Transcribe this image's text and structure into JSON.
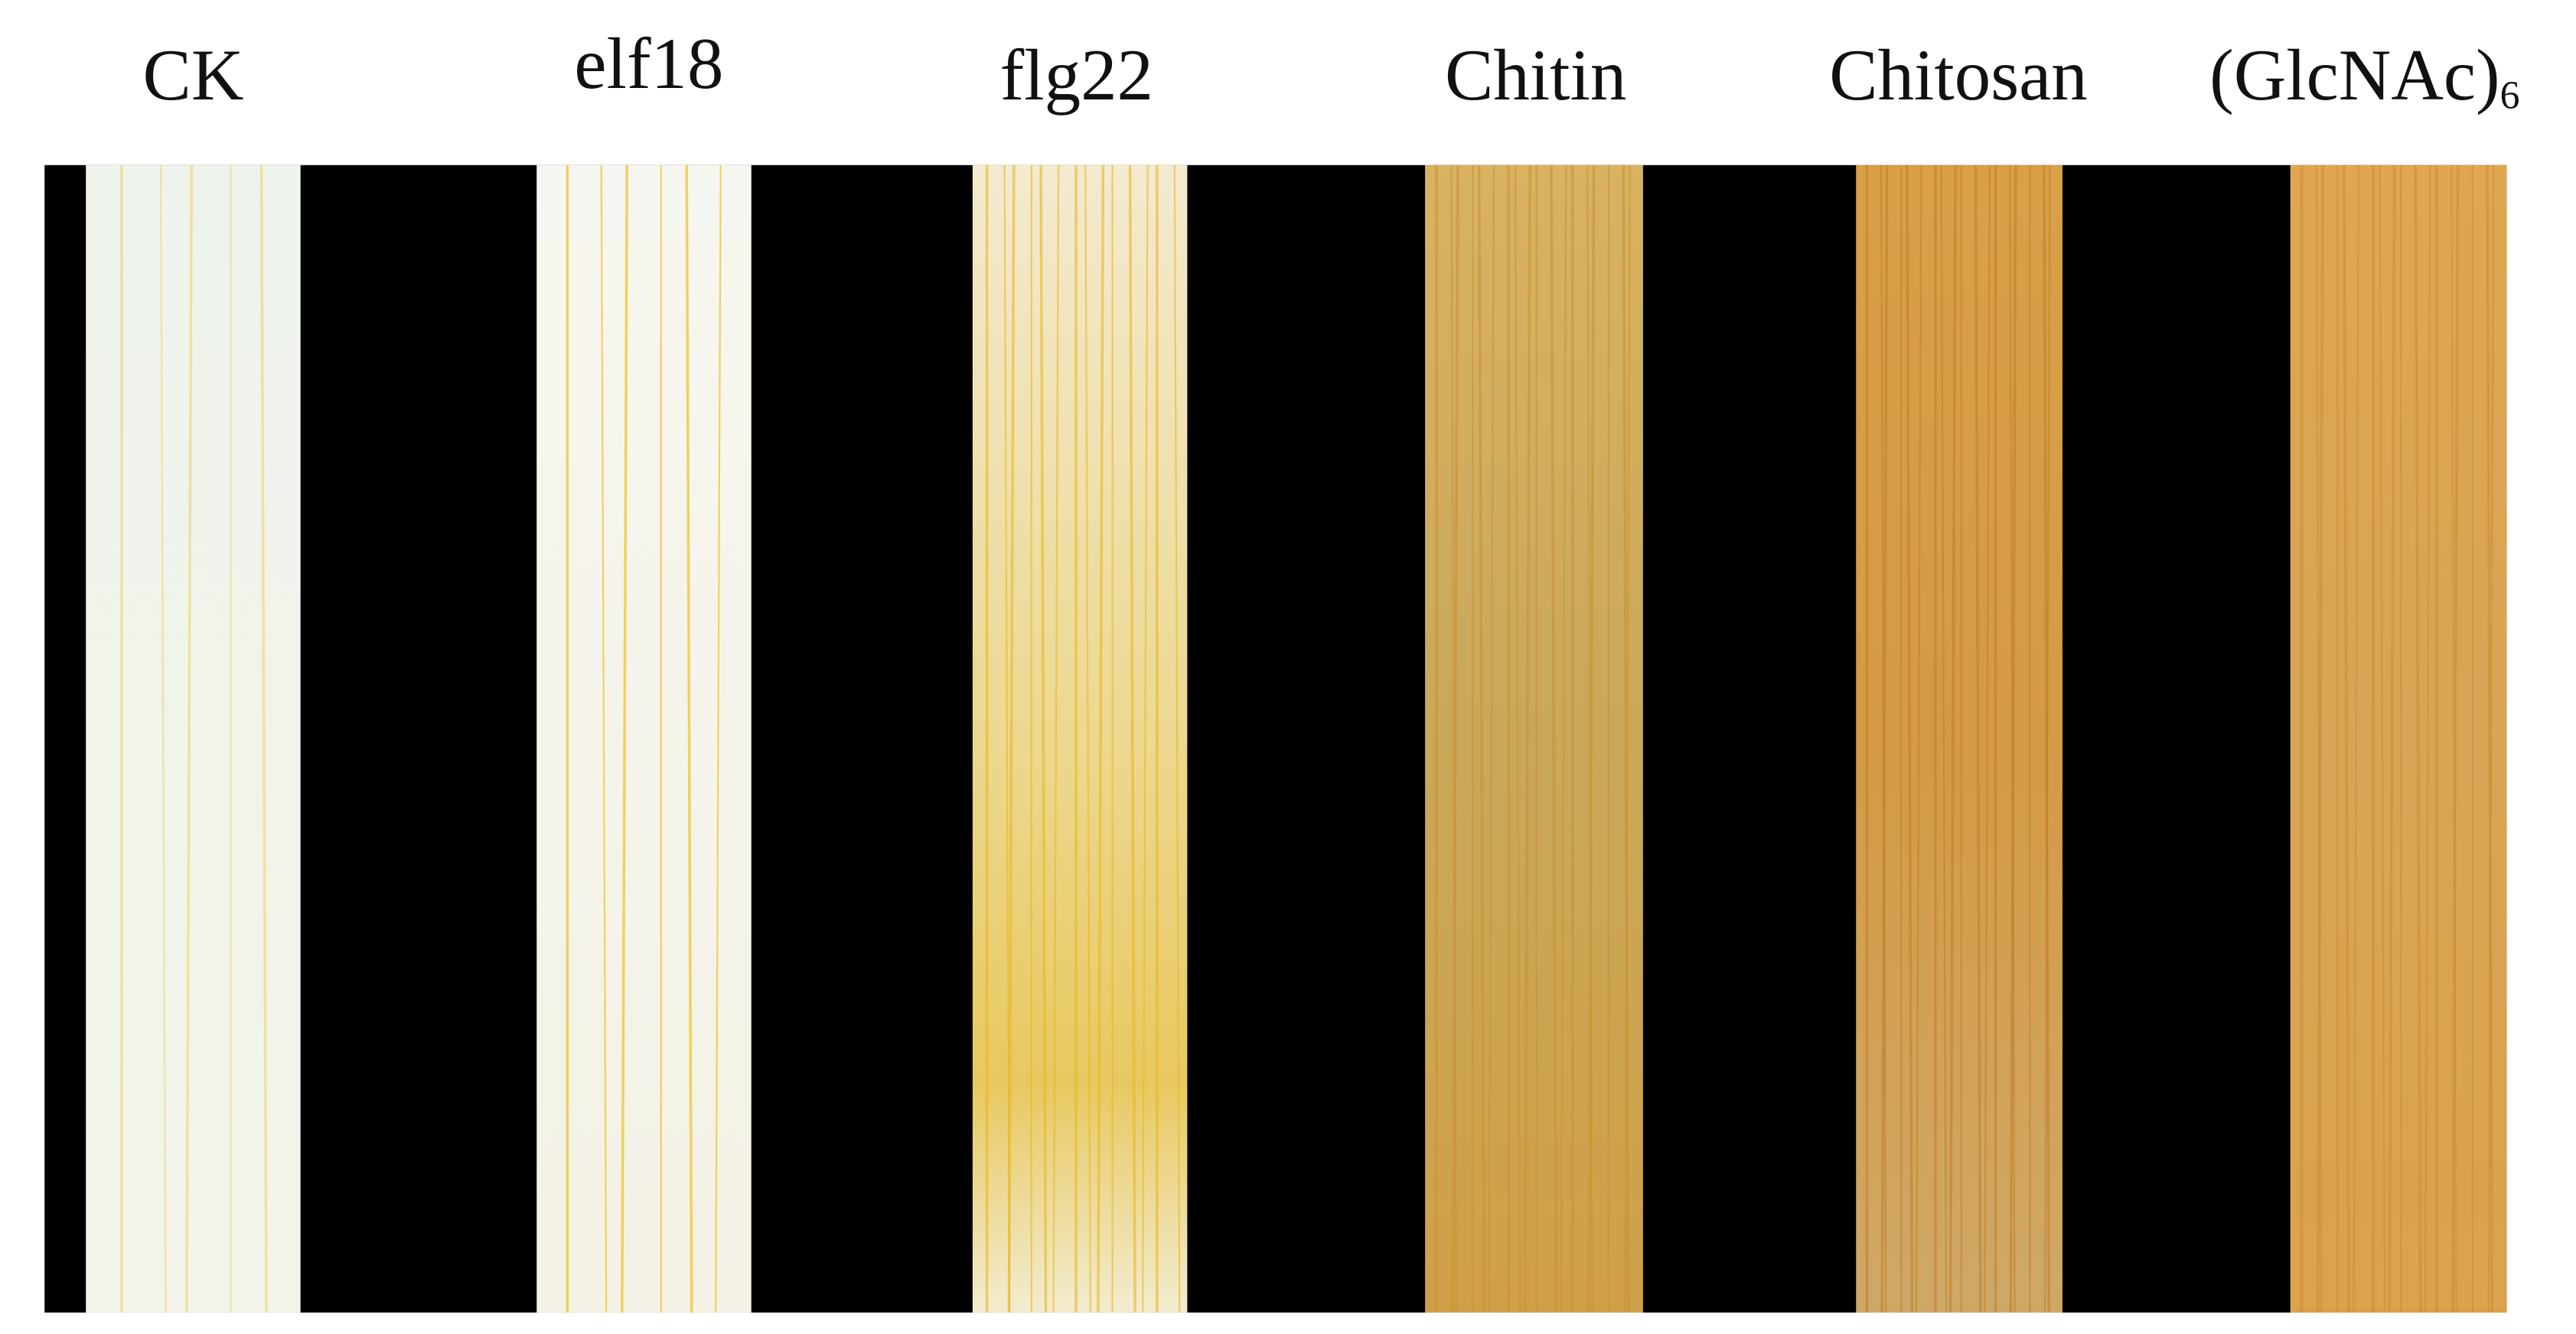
{
  "panels": [
    {
      "label": "CK"
    },
    {
      "label": "elf18"
    },
    {
      "label": "flg22"
    },
    {
      "label": "Chitin"
    },
    {
      "label": "Chitosan"
    },
    {
      "label": "(GlcNAc)",
      "subscript": "6"
    }
  ]
}
